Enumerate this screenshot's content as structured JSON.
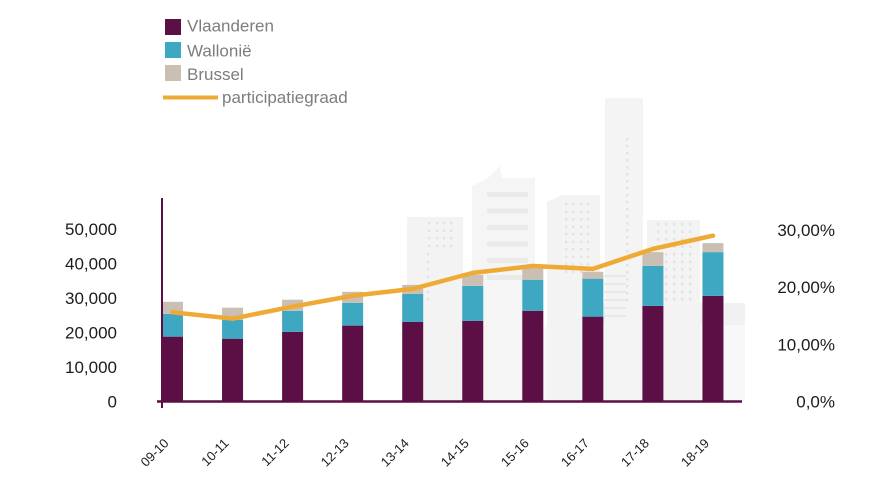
{
  "chart_data": {
    "type": "bar",
    "title": "",
    "xlabel": "",
    "ylabel": "",
    "y2label": "",
    "categories": [
      "09-10",
      "10-11",
      "11-12",
      "12-13",
      "13-14",
      "14-15",
      "15-16",
      "16-17",
      "17-18",
      "18-19"
    ],
    "series": [
      {
        "name": "Vlaanderen",
        "type": "stacked-bar",
        "axis": "left",
        "color": "#5c0f45",
        "values": [
          18800,
          18200,
          20200,
          22000,
          23100,
          23400,
          26300,
          24600,
          27700,
          30600
        ]
      },
      {
        "name": "Wallonië",
        "type": "stacked-bar",
        "axis": "left",
        "color": "#3ea8c3",
        "values": [
          6600,
          5500,
          6100,
          6600,
          8100,
          10100,
          9000,
          11000,
          11600,
          12700
        ]
      },
      {
        "name": "Brussel",
        "type": "stacked-bar",
        "axis": "left",
        "color": "#c9c0b3",
        "values": [
          3500,
          3500,
          3200,
          3200,
          2600,
          3200,
          3300,
          2000,
          4000,
          2600
        ]
      },
      {
        "name": "participatiegraad",
        "type": "line",
        "axis": "right",
        "unit": "%",
        "color": "#efa935",
        "values": [
          15.6,
          14.5,
          16.6,
          18.5,
          19.7,
          22.5,
          23.7,
          23.2,
          26.7,
          29.0
        ]
      }
    ],
    "y_left": {
      "ylim": [
        0,
        50000
      ],
      "ticks": [
        0,
        10000,
        20000,
        30000,
        40000,
        50000
      ],
      "tick_labels": [
        "0",
        "10,000",
        "20,000",
        "30,000",
        "40,000",
        "50,000"
      ]
    },
    "y_right": {
      "ylim": [
        0,
        30
      ],
      "ticks": [
        0,
        10,
        20,
        30
      ],
      "tick_labels": [
        "0,0%",
        "10,00%",
        "20,00%",
        "30,00%"
      ]
    },
    "grid": false,
    "legend_position": "top-left"
  }
}
